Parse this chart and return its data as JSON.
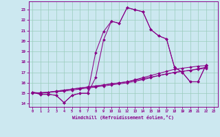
{
  "xlabel": "Windchill (Refroidissement éolien,°C)",
  "background_color": "#cce8f0",
  "grid_color": "#99ccbb",
  "line_color": "#880088",
  "xlim": [
    -0.5,
    23.5
  ],
  "ylim": [
    13.7,
    23.8
  ],
  "xticks": [
    0,
    1,
    2,
    3,
    4,
    5,
    6,
    7,
    8,
    9,
    10,
    11,
    12,
    13,
    14,
    15,
    16,
    17,
    18,
    19,
    20,
    21,
    22,
    23
  ],
  "yticks": [
    14,
    15,
    16,
    17,
    18,
    19,
    20,
    21,
    22,
    23
  ],
  "lines": [
    {
      "x": [
        0,
        1,
        2,
        3,
        4,
        5,
        6,
        7,
        8,
        9,
        10,
        11,
        12,
        13,
        14,
        15,
        16,
        17,
        18,
        19,
        20,
        21,
        22
      ],
      "y": [
        15.1,
        14.9,
        14.9,
        14.8,
        14.1,
        14.8,
        15.0,
        15.0,
        18.9,
        20.9,
        21.9,
        21.7,
        23.2,
        23.0,
        22.8,
        21.1,
        20.5,
        20.2,
        17.5,
        17.0,
        16.1,
        16.1,
        17.7
      ]
    },
    {
      "x": [
        0,
        1,
        2,
        3,
        4,
        5,
        6,
        7,
        8,
        9,
        10,
        11,
        12,
        13,
        14,
        15,
        16,
        17,
        18,
        19,
        20,
        21,
        22
      ],
      "y": [
        15.1,
        14.9,
        14.9,
        14.8,
        14.1,
        14.8,
        15.0,
        15.0,
        16.5,
        20.1,
        21.9,
        21.7,
        23.2,
        23.0,
        22.8,
        21.1,
        20.5,
        20.2,
        17.5,
        17.0,
        16.1,
        16.1,
        17.7
      ]
    },
    {
      "x": [
        0,
        1,
        2,
        3,
        4,
        5,
        6,
        7,
        8,
        9,
        10,
        11,
        12,
        13,
        14,
        15,
        16,
        17,
        18,
        19,
        20,
        21,
        22
      ],
      "y": [
        15.1,
        15.0,
        15.1,
        15.2,
        15.3,
        15.4,
        15.5,
        15.6,
        15.7,
        15.8,
        15.9,
        16.0,
        16.1,
        16.3,
        16.5,
        16.7,
        16.9,
        17.1,
        17.3,
        17.4,
        17.5,
        17.6,
        17.65
      ]
    },
    {
      "x": [
        0,
        1,
        2,
        3,
        4,
        5,
        6,
        7,
        8,
        9,
        10,
        11,
        12,
        13,
        14,
        15,
        16,
        17,
        18,
        19,
        20,
        21,
        22
      ],
      "y": [
        15.05,
        15.05,
        15.1,
        15.15,
        15.2,
        15.3,
        15.4,
        15.5,
        15.6,
        15.7,
        15.8,
        15.9,
        16.0,
        16.15,
        16.3,
        16.5,
        16.7,
        16.85,
        17.0,
        17.1,
        17.2,
        17.3,
        17.4
      ]
    },
    {
      "x": [
        0,
        1,
        2,
        3,
        4,
        5,
        6,
        7,
        8,
        9,
        10,
        11,
        12,
        13,
        14,
        15,
        16,
        17,
        18,
        19,
        20,
        21,
        22
      ],
      "y": [
        15.0,
        15.05,
        15.1,
        15.2,
        15.3,
        15.4,
        15.5,
        15.6,
        15.7,
        15.8,
        15.9,
        16.0,
        16.1,
        16.25,
        16.4,
        16.55,
        16.7,
        16.85,
        17.0,
        17.1,
        17.2,
        17.35,
        17.5
      ]
    }
  ]
}
